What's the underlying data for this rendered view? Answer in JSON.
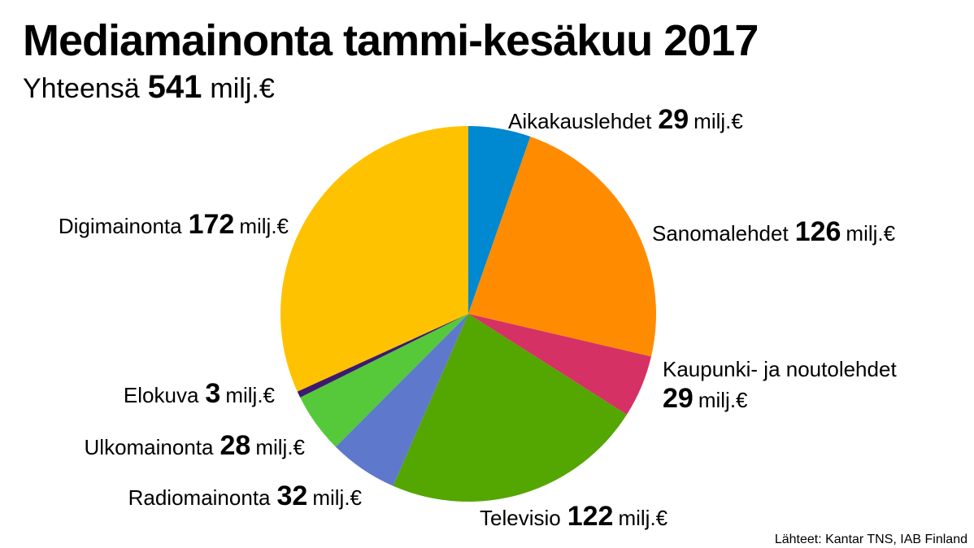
{
  "chart_data": {
    "type": "pie",
    "title": "Mediamainonta tammi-kesäkuu 2017",
    "total_label": "Yhteensä",
    "total": 541,
    "unit": "milj.€",
    "categories": [
      "Aikakauslehdet",
      "Sanomalehdet",
      "Kaupunki- ja noutolehdet",
      "Televisio",
      "Radiomainonta",
      "Ulkomainonta",
      "Elokuva",
      "Digimainonta"
    ],
    "values": [
      29,
      126,
      29,
      122,
      32,
      28,
      3,
      172
    ],
    "colors": [
      "#0088d1",
      "#ff8c00",
      "#d63164",
      "#54a600",
      "#5e78cc",
      "#55c93a",
      "#3c1a6e",
      "#ffc200"
    ],
    "source": "Lähteet: Kantar TNS, IAB Finland"
  }
}
